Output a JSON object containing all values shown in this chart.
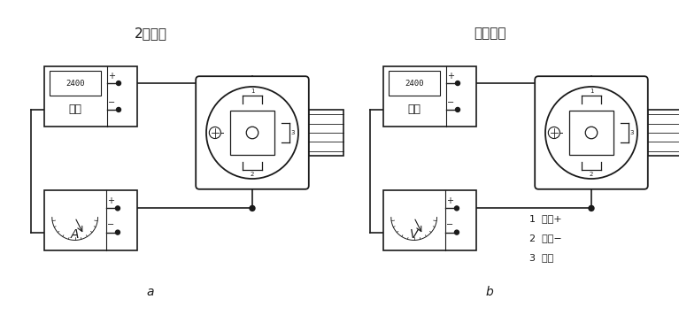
{
  "title_left": "2线电流",
  "title_right": "电压输出",
  "label_a": "a",
  "label_b": "b",
  "label_A": "A",
  "label_V": "V",
  "power_label": "电源",
  "display_text": "2400",
  "legend_1": "1  电源+",
  "legend_2": "2  电源−",
  "legend_3": "3  输出",
  "bg_color": "#ffffff",
  "line_color": "#1a1a1a",
  "font_size_title": 11,
  "font_size_label": 9,
  "font_size_legend": 8
}
